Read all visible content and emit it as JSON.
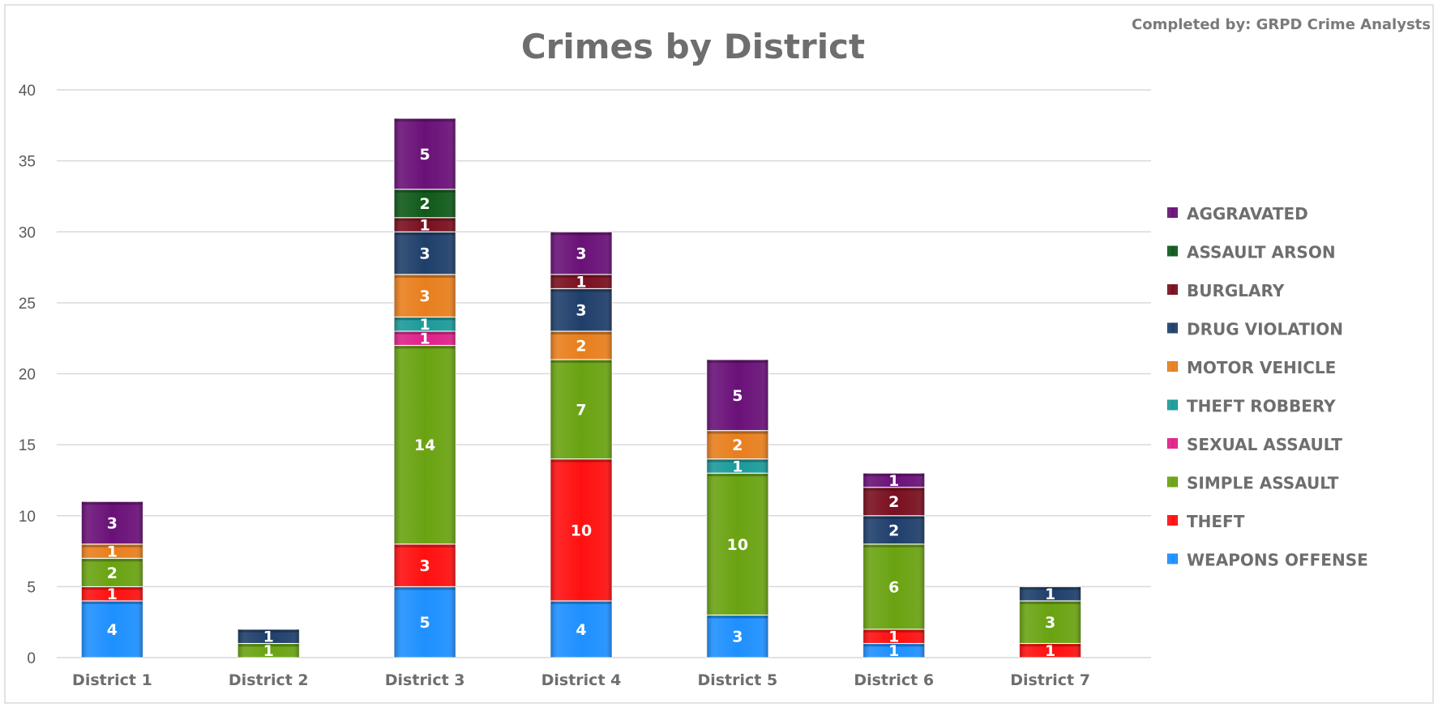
{
  "credit": "Completed by: GRPD Crime Analysts",
  "chart_data": {
    "type": "bar",
    "stacked": true,
    "title": "Crimes by District",
    "xlabel": "",
    "ylabel": "",
    "ylim": [
      0,
      40
    ],
    "yticks": [
      0,
      5,
      10,
      15,
      20,
      25,
      30,
      35,
      40
    ],
    "grid": true,
    "legend_position": "right",
    "categories": [
      "District 1",
      "District 2",
      "District 3",
      "District 4",
      "District 5",
      "District 6",
      "District 7"
    ],
    "series": [
      {
        "name": "WEAPONS OFFENSE",
        "color": "#1e90ff",
        "values": [
          4,
          0,
          5,
          4,
          3,
          1,
          0
        ]
      },
      {
        "name": "THEFT",
        "color": "#ff1010",
        "values": [
          1,
          0,
          3,
          10,
          0,
          1,
          1
        ]
      },
      {
        "name": "SIMPLE ASSAULT",
        "color": "#6aa312",
        "values": [
          2,
          1,
          14,
          7,
          10,
          6,
          3
        ]
      },
      {
        "name": "SEXUAL ASSAULT",
        "color": "#e0218a",
        "values": [
          0,
          0,
          1,
          0,
          0,
          0,
          0
        ]
      },
      {
        "name": "THEFT ROBBERY",
        "color": "#1c9a9a",
        "values": [
          0,
          0,
          1,
          0,
          1,
          0,
          0
        ]
      },
      {
        "name": "MOTOR VEHICLE",
        "color": "#e87f1e",
        "values": [
          1,
          0,
          3,
          2,
          2,
          0,
          0
        ]
      },
      {
        "name": "DRUG VIOLATION",
        "color": "#1f3f6b",
        "values": [
          0,
          1,
          3,
          3,
          0,
          2,
          1
        ]
      },
      {
        "name": "BURGLARY",
        "color": "#7a0f1f",
        "values": [
          0,
          0,
          1,
          1,
          0,
          2,
          0
        ]
      },
      {
        "name": "ASSAULT ARSON",
        "color": "#0f5a1a",
        "values": [
          0,
          0,
          2,
          0,
          0,
          0,
          0
        ]
      },
      {
        "name": "AGGRAVATED",
        "color": "#6a1178",
        "values": [
          3,
          0,
          5,
          3,
          5,
          1,
          0
        ]
      }
    ]
  }
}
